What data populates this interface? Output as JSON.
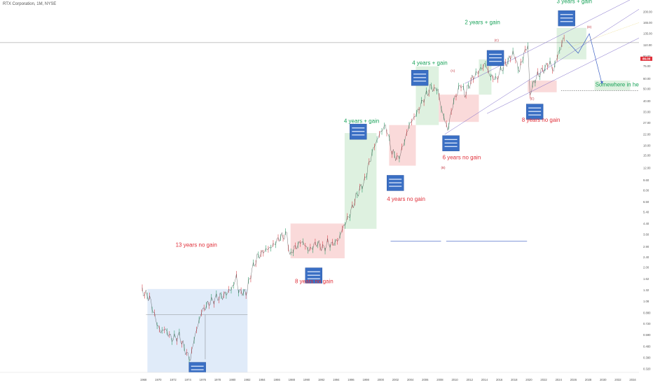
{
  "header": {
    "title": "RTX Corporation, 1M, NYSE"
  },
  "chart_data": {
    "type": "line",
    "scale": "log",
    "title": "RTX Corporation, 1M, NYSE",
    "xlabel": "",
    "ylabel": "",
    "xlim": [
      1968,
      2035
    ],
    "ylim": [
      0.3,
      230
    ],
    "x_tick_labels": [
      "1968",
      "1970",
      "1972",
      "1974",
      "1976",
      "1978",
      "1980",
      "1982",
      "1984",
      "1986",
      "1988",
      "1990",
      "1992",
      "1994",
      "1996",
      "1998",
      "2000",
      "2002",
      "2004",
      "2006",
      "2008",
      "2010",
      "2012",
      "2014",
      "2016",
      "2018",
      "2020",
      "2022",
      "2024",
      "2026",
      "2028",
      "2030",
      "2032",
      "2034"
    ],
    "y_tick_labels": [
      "200.00",
      "165.00",
      "135.00",
      "110.00",
      "90.00",
      "75.00",
      "60.00",
      "50.00",
      "40.00",
      "33.00",
      "27.00",
      "22.00",
      "18.00",
      "15.00",
      "12.00",
      "9.60",
      "8.00",
      "6.50",
      "5.40",
      "4.40",
      "3.60",
      "2.90",
      "2.40",
      "2.00",
      "1.62",
      "1.32",
      "1.08",
      "0.880",
      "0.720",
      "0.590",
      "0.480",
      "0.390",
      "0.320"
    ],
    "current_price": "86.00",
    "series": [
      {
        "name": "",
        "x": [
          1968.0,
          1969.0,
          1969.5,
          1970.0,
          1970.5,
          1971.0,
          1972.0,
          1973.0,
          1974.0,
          1974.5,
          1975.0,
          1975.5,
          1976.0,
          1977.0,
          1978.0,
          1979.0,
          1980.0,
          1980.7,
          1981.0,
          1982.0,
          1982.8,
          1983.5,
          1984.5,
          1985.5,
          1986.5,
          1987.5,
          1987.9,
          1988.5,
          1989.5,
          1990.5,
          1991.5,
          1992.5,
          1993.0,
          1993.5,
          1994.5,
          1995.0,
          1996.0,
          1997.0,
          1998.0,
          1998.6,
          1999.0,
          2000.0,
          2000.8,
          2001.7,
          2002.5,
          2003.2,
          2004.0,
          2005.0,
          2006.0,
          2007.0,
          2007.9,
          2008.5,
          2009.2,
          2010.0,
          2011.0,
          2011.5,
          2012.5,
          2013.5,
          2014.3,
          2015.0,
          2015.8,
          2016.5,
          2017.5,
          2018.0,
          2018.9,
          2019.5,
          2020.0,
          2020.3,
          2021.0,
          2021.8,
          2022.5,
          2023.0,
          2023.5,
          2023.8,
          2024.3,
          2024.9
        ],
        "y": [
          1.3,
          1.15,
          0.9,
          0.72,
          0.62,
          0.66,
          0.55,
          0.58,
          0.42,
          0.38,
          0.55,
          0.7,
          0.9,
          1.05,
          1.15,
          1.2,
          1.35,
          1.65,
          1.3,
          1.25,
          1.9,
          2.4,
          2.7,
          2.9,
          3.4,
          3.6,
          2.5,
          2.8,
          3.2,
          2.7,
          3.1,
          2.8,
          3.1,
          3.0,
          3.3,
          4.0,
          5.2,
          7.5,
          9.5,
          13.0,
          16.0,
          22.0,
          26.0,
          16.0,
          14.0,
          18.0,
          26.0,
          32.0,
          42.0,
          52.0,
          48.0,
          32.0,
          24.0,
          40.0,
          55.0,
          45.0,
          60.0,
          70.0,
          78.0,
          62.0,
          60.0,
          72.0,
          85.0,
          95.0,
          70.0,
          95.0,
          110.0,
          45.0,
          60.0,
          68.0,
          75.0,
          80.0,
          68.0,
          85.0,
          100.0,
          125.0
        ]
      }
    ],
    "annotations": {
      "no_gain_1": "13 years no gain",
      "no_gain_2": "8 years no gain",
      "no_gain_3": "4 years no gain",
      "no_gain_4": "6 years no gain",
      "no_gain_5": "8 years no gain",
      "gain_1": "4 years +  gain",
      "gain_2": "4 years +  gain",
      "gain_3": "2 years +  gain",
      "gain_4": "3 years +  gain",
      "target": "Somewhere in here"
    },
    "waves": {
      "A": "(A)",
      "B": "(B)",
      "C": "(C)",
      "D": "(D)",
      "E": "(E)"
    },
    "colors": {
      "red_zone": "#f9d4d4",
      "green_zone": "#d8eeda",
      "blue_zone": "#dbe8f8",
      "channel": "#7b68c8",
      "info_box": "#3a6fc4",
      "arrow": "#3a5fc4",
      "price": "#222222"
    }
  }
}
